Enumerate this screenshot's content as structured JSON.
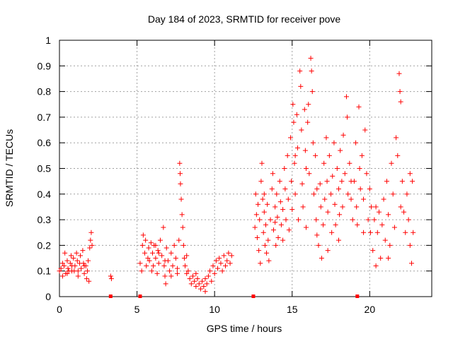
{
  "chart_data": {
    "type": "scatter",
    "title": "Day 184 of 2023, SRMTID for receiver pove",
    "xlabel": "GPS time / hours",
    "ylabel": "SRMTID / TECUs",
    "xlim": [
      0,
      24
    ],
    "ylim": [
      0,
      1
    ],
    "xticks": [
      0,
      5,
      10,
      15,
      20
    ],
    "yticks": [
      0,
      0.1,
      0.2,
      0.3,
      0.4,
      0.5,
      0.6,
      0.7,
      0.8,
      0.9,
      1
    ],
    "xtick_labels": [
      "0",
      "5",
      "10",
      "15",
      "20"
    ],
    "ytick_labels": [
      "0",
      "0.1",
      "0.2",
      "0.3",
      "0.4",
      "0.5",
      "0.6",
      "0.7",
      "0.8",
      "0.9",
      "1"
    ],
    "grid": true,
    "marker": "+",
    "color": "#ff0000",
    "series": [
      {
        "name": "SRMTID",
        "points": [
          [
            0.0,
            0.1
          ],
          [
            0.1,
            0.11
          ],
          [
            0.2,
            0.13
          ],
          [
            0.3,
            0.12
          ],
          [
            0.35,
            0.17
          ],
          [
            0.4,
            0.09
          ],
          [
            0.5,
            0.14
          ],
          [
            0.55,
            0.11
          ],
          [
            0.6,
            0.1
          ],
          [
            0.7,
            0.13
          ],
          [
            0.75,
            0.16
          ],
          [
            0.8,
            0.12
          ],
          [
            0.9,
            0.15
          ],
          [
            0.95,
            0.1
          ],
          [
            1.0,
            0.12
          ],
          [
            1.1,
            0.17
          ],
          [
            1.15,
            0.14
          ],
          [
            1.2,
            0.1
          ],
          [
            1.3,
            0.13
          ],
          [
            1.35,
            0.16
          ],
          [
            1.4,
            0.11
          ],
          [
            1.5,
            0.18
          ],
          [
            1.55,
            0.13
          ],
          [
            1.6,
            0.09
          ],
          [
            1.7,
            0.12
          ],
          [
            1.75,
            0.07
          ],
          [
            1.8,
            0.1
          ],
          [
            1.85,
            0.14
          ],
          [
            1.9,
            0.06
          ],
          [
            1.95,
            0.19
          ],
          [
            2.0,
            0.22
          ],
          [
            2.05,
            0.25
          ],
          [
            2.1,
            0.2
          ],
          [
            0.2,
            0.08
          ],
          [
            0.5,
            0.09
          ],
          [
            0.8,
            0.1
          ],
          [
            1.2,
            0.08
          ],
          [
            1.6,
            0.12
          ],
          [
            3.3,
            0.08
          ],
          [
            3.35,
            0.07
          ],
          [
            5.2,
            0.13
          ],
          [
            5.3,
            0.1
          ],
          [
            5.35,
            0.2
          ],
          [
            5.4,
            0.24
          ],
          [
            5.5,
            0.17
          ],
          [
            5.55,
            0.22
          ],
          [
            5.6,
            0.12
          ],
          [
            5.7,
            0.15
          ],
          [
            5.75,
            0.19
          ],
          [
            5.8,
            0.14
          ],
          [
            5.9,
            0.21
          ],
          [
            5.95,
            0.1
          ],
          [
            6.0,
            0.17
          ],
          [
            6.05,
            0.12
          ],
          [
            6.1,
            0.2
          ],
          [
            6.2,
            0.15
          ],
          [
            6.3,
            0.09
          ],
          [
            6.35,
            0.18
          ],
          [
            6.4,
            0.13
          ],
          [
            6.5,
            0.22
          ],
          [
            6.6,
            0.16
          ],
          [
            6.7,
            0.27
          ],
          [
            6.75,
            0.12
          ],
          [
            6.8,
            0.08
          ],
          [
            6.85,
            0.05
          ],
          [
            6.9,
            0.19
          ],
          [
            7.0,
            0.14
          ],
          [
            7.1,
            0.1
          ],
          [
            7.2,
            0.17
          ],
          [
            7.3,
            0.12
          ],
          [
            7.4,
            0.2
          ],
          [
            7.5,
            0.15
          ],
          [
            7.6,
            0.09
          ],
          [
            7.7,
            0.22
          ],
          [
            7.75,
            0.52
          ],
          [
            7.78,
            0.48
          ],
          [
            7.8,
            0.44
          ],
          [
            7.85,
            0.38
          ],
          [
            7.9,
            0.32
          ],
          [
            7.95,
            0.27
          ],
          [
            8.0,
            0.2
          ],
          [
            8.05,
            0.15
          ],
          [
            8.1,
            0.12
          ],
          [
            8.2,
            0.16
          ],
          [
            8.3,
            0.1
          ],
          [
            8.4,
            0.07
          ],
          [
            8.5,
            0.05
          ],
          [
            8.6,
            0.08
          ],
          [
            8.7,
            0.06
          ],
          [
            8.8,
            0.04
          ],
          [
            8.9,
            0.07
          ],
          [
            9.0,
            0.05
          ],
          [
            9.1,
            0.03
          ],
          [
            9.2,
            0.06
          ],
          [
            9.3,
            0.04
          ],
          [
            9.4,
            0.07
          ],
          [
            9.5,
            0.05
          ],
          [
            9.6,
            0.08
          ],
          [
            9.7,
            0.1
          ],
          [
            9.8,
            0.06
          ],
          [
            9.9,
            0.12
          ],
          [
            10.0,
            0.09
          ],
          [
            10.1,
            0.14
          ],
          [
            10.2,
            0.11
          ],
          [
            10.3,
            0.15
          ],
          [
            10.4,
            0.13
          ],
          [
            10.5,
            0.1
          ],
          [
            10.6,
            0.16
          ],
          [
            10.7,
            0.12
          ],
          [
            10.8,
            0.14
          ],
          [
            10.9,
            0.17
          ],
          [
            11.0,
            0.13
          ],
          [
            11.1,
            0.16
          ],
          [
            6.2,
            0.2
          ],
          [
            6.4,
            0.17
          ],
          [
            6.8,
            0.14
          ],
          [
            7.2,
            0.08
          ],
          [
            7.6,
            0.11
          ],
          [
            8.2,
            0.09
          ],
          [
            8.8,
            0.09
          ],
          [
            9.4,
            0.02
          ],
          [
            12.6,
            0.27
          ],
          [
            12.65,
            0.4
          ],
          [
            12.7,
            0.32
          ],
          [
            12.75,
            0.23
          ],
          [
            12.8,
            0.36
          ],
          [
            12.85,
            0.18
          ],
          [
            12.9,
            0.3
          ],
          [
            12.95,
            0.13
          ],
          [
            13.0,
            0.45
          ],
          [
            13.05,
            0.52
          ],
          [
            13.1,
            0.38
          ],
          [
            13.15,
            0.25
          ],
          [
            13.2,
            0.33
          ],
          [
            13.25,
            0.2
          ],
          [
            13.3,
            0.28
          ],
          [
            13.35,
            0.17
          ],
          [
            13.4,
            0.36
          ],
          [
            13.45,
            0.22
          ],
          [
            13.5,
            0.14
          ],
          [
            13.6,
            0.3
          ],
          [
            13.7,
            0.42
          ],
          [
            13.75,
            0.48
          ],
          [
            13.8,
            0.26
          ],
          [
            13.9,
            0.35
          ],
          [
            13.95,
            0.2
          ],
          [
            14.0,
            0.4
          ],
          [
            14.05,
            0.31
          ],
          [
            14.1,
            0.23
          ],
          [
            14.2,
            0.45
          ],
          [
            14.25,
            0.37
          ],
          [
            14.3,
            0.28
          ],
          [
            14.4,
            0.34
          ],
          [
            14.5,
            0.5
          ],
          [
            14.55,
            0.42
          ],
          [
            14.6,
            0.3
          ],
          [
            14.7,
            0.55
          ],
          [
            14.75,
            0.38
          ],
          [
            14.8,
            0.26
          ],
          [
            14.9,
            0.62
          ],
          [
            14.95,
            0.45
          ],
          [
            15.0,
            0.34
          ],
          [
            15.05,
            0.75
          ],
          [
            15.1,
            0.68
          ],
          [
            15.15,
            0.52
          ],
          [
            15.2,
            0.4
          ],
          [
            15.3,
            0.71
          ],
          [
            15.35,
            0.58
          ],
          [
            15.4,
            0.3
          ],
          [
            15.5,
            0.88
          ],
          [
            15.55,
            0.82
          ],
          [
            15.6,
            0.65
          ],
          [
            15.65,
            0.44
          ],
          [
            15.7,
            0.35
          ],
          [
            15.8,
            0.73
          ],
          [
            15.85,
            0.57
          ],
          [
            15.9,
            0.27
          ],
          [
            16.0,
            0.68
          ],
          [
            16.05,
            0.75
          ],
          [
            16.1,
            0.48
          ],
          [
            16.2,
            0.93
          ],
          [
            16.25,
            0.88
          ],
          [
            16.3,
            0.8
          ],
          [
            16.35,
            0.6
          ],
          [
            16.4,
            0.4
          ],
          [
            16.5,
            0.55
          ],
          [
            16.55,
            0.3
          ],
          [
            16.6,
            0.24
          ],
          [
            16.7,
            0.2
          ],
          [
            16.8,
            0.44
          ],
          [
            16.85,
            0.35
          ],
          [
            16.9,
            0.15
          ],
          [
            17.0,
            0.28
          ],
          [
            17.05,
            0.52
          ],
          [
            17.1,
            0.38
          ],
          [
            17.2,
            0.62
          ],
          [
            17.25,
            0.45
          ],
          [
            17.3,
            0.33
          ],
          [
            17.4,
            0.55
          ],
          [
            17.5,
            0.4
          ],
          [
            17.55,
            0.25
          ],
          [
            17.6,
            0.47
          ],
          [
            17.7,
            0.6
          ],
          [
            17.75,
            0.36
          ],
          [
            17.8,
            0.28
          ],
          [
            17.9,
            0.5
          ],
          [
            18.0,
            0.42
          ],
          [
            18.05,
            0.32
          ],
          [
            18.1,
            0.57
          ],
          [
            18.2,
            0.45
          ],
          [
            18.25,
            0.35
          ],
          [
            18.3,
            0.63
          ],
          [
            18.4,
            0.48
          ],
          [
            18.5,
            0.78
          ],
          [
            18.55,
            0.7
          ],
          [
            18.6,
            0.4
          ],
          [
            18.7,
            0.52
          ],
          [
            18.8,
            0.38
          ],
          [
            18.9,
            0.3
          ],
          [
            19.0,
            0.45
          ],
          [
            19.1,
            0.6
          ],
          [
            19.15,
            0.35
          ],
          [
            19.2,
            0.28
          ],
          [
            19.3,
            0.74
          ],
          [
            19.35,
            0.5
          ],
          [
            19.4,
            0.42
          ],
          [
            19.5,
            0.55
          ],
          [
            19.6,
            0.38
          ],
          [
            19.7,
            0.65
          ],
          [
            19.8,
            0.48
          ],
          [
            19.9,
            0.3
          ],
          [
            20.0,
            0.42
          ],
          [
            20.05,
            0.25
          ],
          [
            20.1,
            0.35
          ],
          [
            20.2,
            0.18
          ],
          [
            20.3,
            0.3
          ],
          [
            20.4,
            0.12
          ],
          [
            20.5,
            0.25
          ],
          [
            20.6,
            0.33
          ],
          [
            20.7,
            0.15
          ],
          [
            20.8,
            0.28
          ],
          [
            20.9,
            0.38
          ],
          [
            21.0,
            0.22
          ],
          [
            21.1,
            0.45
          ],
          [
            21.2,
            0.32
          ],
          [
            21.3,
            0.2
          ],
          [
            21.4,
            0.52
          ],
          [
            21.5,
            0.4
          ],
          [
            21.6,
            0.27
          ],
          [
            21.7,
            0.62
          ],
          [
            21.8,
            0.55
          ],
          [
            21.9,
            0.87
          ],
          [
            21.95,
            0.8
          ],
          [
            22.0,
            0.76
          ],
          [
            22.1,
            0.45
          ],
          [
            22.2,
            0.33
          ],
          [
            22.3,
            0.25
          ],
          [
            22.4,
            0.4
          ],
          [
            22.5,
            0.3
          ],
          [
            22.6,
            0.2
          ],
          [
            22.7,
            0.13
          ],
          [
            22.75,
            0.45
          ],
          [
            22.8,
            0.25
          ],
          [
            13.2,
            0.4
          ],
          [
            13.9,
            0.29
          ],
          [
            14.4,
            0.22
          ],
          [
            15.2,
            0.55
          ],
          [
            15.9,
            0.5
          ],
          [
            16.6,
            0.42
          ],
          [
            17.3,
            0.18
          ],
          [
            18.0,
            0.22
          ],
          [
            18.8,
            0.45
          ],
          [
            19.6,
            0.25
          ],
          [
            20.4,
            0.35
          ],
          [
            21.2,
            0.15
          ],
          [
            22.0,
            0.35
          ],
          [
            22.6,
            0.48
          ]
        ]
      }
    ],
    "gap_markers_x": [
      3.3,
      5.2,
      12.5,
      19.2
    ]
  }
}
